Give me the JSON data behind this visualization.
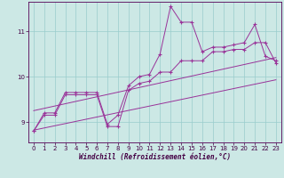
{
  "xlabel": "Windchill (Refroidissement éolien,°C)",
  "background_color": "#cce8e5",
  "grid_color": "#99cccc",
  "line_color": "#993399",
  "x_ticks": [
    0,
    1,
    2,
    3,
    4,
    5,
    6,
    7,
    8,
    9,
    10,
    11,
    12,
    13,
    14,
    15,
    16,
    17,
    18,
    19,
    20,
    21,
    22,
    23
  ],
  "y_ticks": [
    9,
    10,
    11
  ],
  "xlim": [
    -0.5,
    23.5
  ],
  "ylim": [
    8.55,
    11.65
  ],
  "series1": [
    8.8,
    9.2,
    9.2,
    9.65,
    9.65,
    9.65,
    9.65,
    8.95,
    9.15,
    9.8,
    10.0,
    10.05,
    10.5,
    11.55,
    11.2,
    11.2,
    10.55,
    10.65,
    10.65,
    10.7,
    10.75,
    11.15,
    10.45,
    10.35
  ],
  "series2": [
    8.8,
    9.15,
    9.15,
    9.6,
    9.6,
    9.6,
    9.6,
    8.9,
    8.9,
    9.7,
    9.85,
    9.9,
    10.1,
    10.1,
    10.35,
    10.35,
    10.35,
    10.55,
    10.55,
    10.6,
    10.6,
    10.75,
    10.75,
    10.3
  ],
  "reg1": [
    8.82,
    9.93
  ],
  "reg2": [
    9.25,
    10.42
  ]
}
